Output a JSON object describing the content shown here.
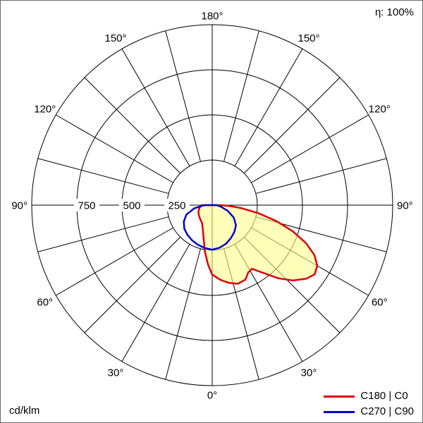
{
  "meta": {
    "efficiency": "η: 100%",
    "unit": "cd/klm"
  },
  "legend": {
    "items": [
      {
        "label": "C180 | C0",
        "color": "#dd0008"
      },
      {
        "label": "C270 | C90",
        "color": "#0000cd"
      }
    ]
  },
  "chart_data": {
    "type": "polar",
    "subtype": "luminous-intensity-distribution",
    "unit": "cd/klm",
    "efficiency": "η: 100%",
    "rmax": 1000,
    "rings": [
      250,
      500,
      750,
      1000
    ],
    "ring_tick_labels": [
      "250",
      "500",
      "750"
    ],
    "ring_tick_values": [
      250,
      500,
      750
    ],
    "spoke_step_deg": 15,
    "angle_label_step_deg": 30,
    "angle_labels": [
      "0°",
      "30°",
      "60°",
      "90°",
      "120°",
      "150°",
      "180°"
    ],
    "gamma_convention": "0 = nadir (bottom of plot); positive gamma = right half (C0/C90), negative gamma = left half (C180/C270)",
    "grid_color": "#000000",
    "series": [
      {
        "name": "C180 | C0",
        "color": "#dd0008",
        "fill": "#ffff8c",
        "fill_opacity": 0.6,
        "points": [
          [
            -90,
            60
          ],
          [
            -80,
            70
          ],
          [
            -70,
            80
          ],
          [
            -60,
            88
          ],
          [
            -50,
            95
          ],
          [
            -40,
            103
          ],
          [
            -30,
            113
          ],
          [
            -22,
            140
          ],
          [
            -15,
            185
          ],
          [
            -9,
            260
          ],
          [
            -4,
            330
          ],
          [
            0,
            385
          ],
          [
            6,
            415
          ],
          [
            12,
            440
          ],
          [
            18,
            458
          ],
          [
            24,
            452
          ],
          [
            28,
            424
          ],
          [
            32,
            416
          ],
          [
            37,
            470
          ],
          [
            42,
            545
          ],
          [
            47,
            612
          ],
          [
            52,
            662
          ],
          [
            56,
            685
          ],
          [
            60,
            672
          ],
          [
            64,
            630
          ],
          [
            68,
            560
          ],
          [
            72,
            470
          ],
          [
            76,
            368
          ],
          [
            80,
            262
          ],
          [
            84,
            165
          ],
          [
            87,
            100
          ],
          [
            90,
            48
          ]
        ]
      },
      {
        "name": "C270 | C90",
        "color": "#0000cd",
        "fill": "none",
        "fill_opacity": 0,
        "points": [
          [
            -90,
            45
          ],
          [
            -80,
            100
          ],
          [
            -70,
            152
          ],
          [
            -60,
            182
          ],
          [
            -50,
            202
          ],
          [
            -40,
            214
          ],
          [
            -30,
            224
          ],
          [
            -20,
            233
          ],
          [
            -10,
            241
          ],
          [
            0,
            247
          ],
          [
            10,
            239
          ],
          [
            20,
            227
          ],
          [
            30,
            209
          ],
          [
            40,
            192
          ],
          [
            50,
            172
          ],
          [
            60,
            138
          ],
          [
            70,
            92
          ],
          [
            80,
            48
          ],
          [
            90,
            25
          ]
        ]
      }
    ]
  }
}
